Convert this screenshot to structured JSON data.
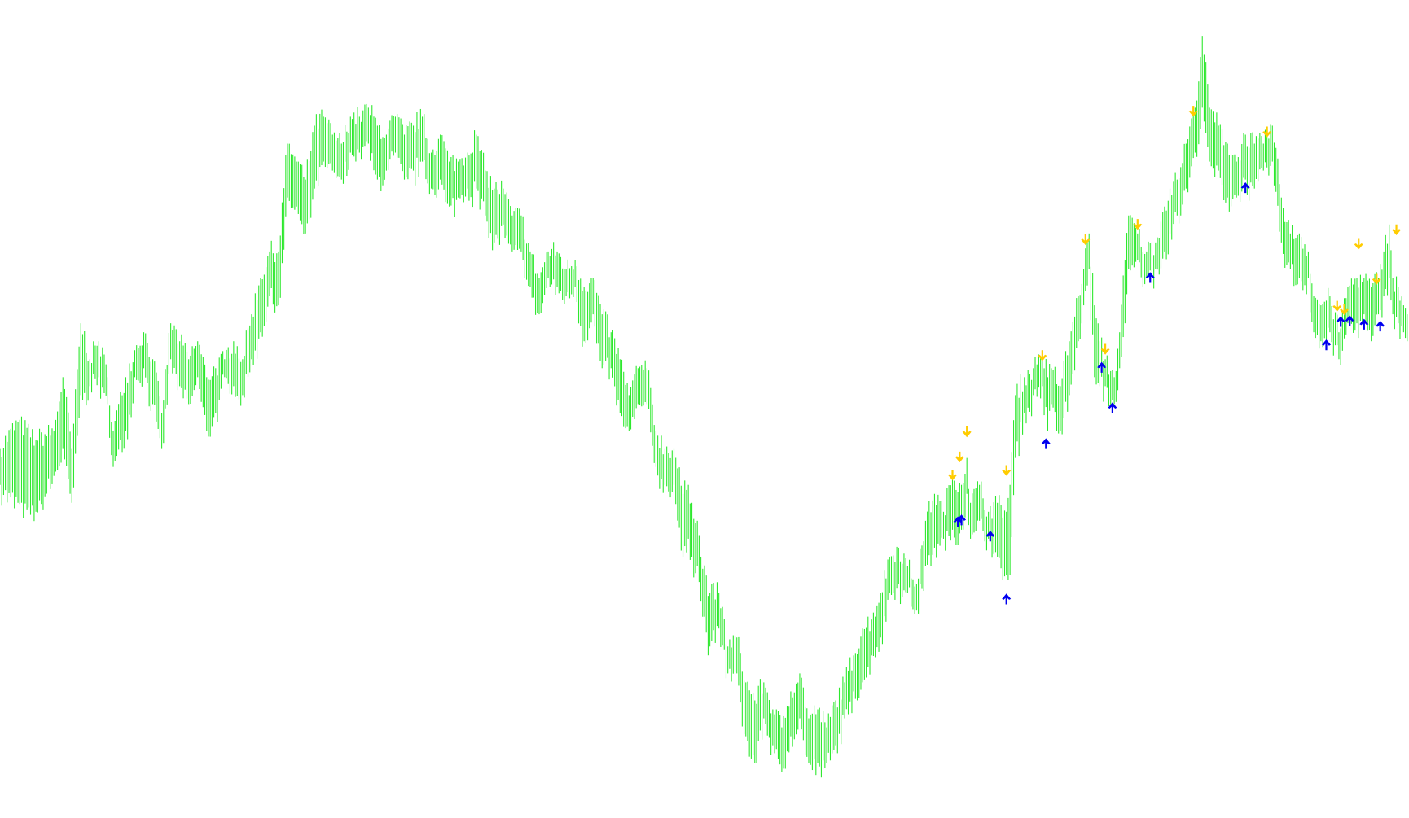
{
  "chart_data": {
    "type": "ohlc-bar",
    "title": "",
    "xlabel": "",
    "ylabel": "",
    "grid": false,
    "legend": "none",
    "background_color": "#ffffff",
    "bar_color": "#2ee82e",
    "up_arrow_color": "#0000ee",
    "down_arrow_color": "#ffcc00",
    "xlim": [
      0,
      785
    ],
    "ylim": [
      89,
      1000
    ],
    "bars_high_low": [
      [
        0,
        500,
        460
      ],
      [
        10,
        530,
        440
      ],
      [
        20,
        510,
        430
      ],
      [
        30,
        520,
        470
      ],
      [
        35,
        580,
        500
      ],
      [
        40,
        500,
        440
      ],
      [
        45,
        640,
        560
      ],
      [
        50,
        600,
        570
      ],
      [
        55,
        620,
        580
      ],
      [
        60,
        580,
        550
      ],
      [
        63,
        520,
        480
      ],
      [
        70,
        580,
        520
      ],
      [
        75,
        610,
        580
      ],
      [
        80,
        630,
        590
      ],
      [
        85,
        600,
        550
      ],
      [
        90,
        540,
        500
      ],
      [
        95,
        640,
        600
      ],
      [
        100,
        620,
        570
      ],
      [
        105,
        600,
        550
      ],
      [
        110,
        620,
        580
      ],
      [
        115,
        580,
        520
      ],
      [
        120,
        590,
        540
      ],
      [
        125,
        600,
        580
      ],
      [
        130,
        620,
        570
      ],
      [
        135,
        600,
        560
      ],
      [
        140,
        650,
        600
      ],
      [
        145,
        690,
        630
      ],
      [
        150,
        720,
        670
      ],
      [
        155,
        720,
        660
      ],
      [
        160,
        840,
        780
      ],
      [
        165,
        820,
        770
      ],
      [
        170,
        800,
        740
      ],
      [
        175,
        860,
        790
      ],
      [
        180,
        870,
        820
      ],
      [
        185,
        850,
        810
      ],
      [
        190,
        840,
        800
      ],
      [
        195,
        870,
        830
      ],
      [
        200,
        870,
        830
      ],
      [
        205,
        880,
        840
      ],
      [
        210,
        860,
        800
      ],
      [
        215,
        850,
        810
      ],
      [
        220,
        870,
        830
      ],
      [
        225,
        850,
        800
      ],
      [
        230,
        860,
        810
      ],
      [
        235,
        870,
        820
      ],
      [
        240,
        830,
        790
      ],
      [
        245,
        850,
        800
      ],
      [
        250,
        820,
        770
      ],
      [
        255,
        820,
        780
      ],
      [
        260,
        830,
        790
      ],
      [
        265,
        850,
        790
      ],
      [
        270,
        810,
        760
      ],
      [
        275,
        790,
        730
      ],
      [
        280,
        790,
        750
      ],
      [
        285,
        760,
        720
      ],
      [
        290,
        760,
        720
      ],
      [
        295,
        720,
        680
      ],
      [
        300,
        690,
        650
      ],
      [
        305,
        720,
        690
      ],
      [
        310,
        720,
        680
      ],
      [
        315,
        700,
        670
      ],
      [
        320,
        710,
        680
      ],
      [
        325,
        680,
        620
      ],
      [
        330,
        690,
        650
      ],
      [
        335,
        650,
        590
      ],
      [
        340,
        630,
        590
      ],
      [
        345,
        600,
        540
      ],
      [
        350,
        560,
        520
      ],
      [
        355,
        590,
        550
      ],
      [
        360,
        590,
        550
      ],
      [
        365,
        520,
        480
      ],
      [
        370,
        500,
        460
      ],
      [
        375,
        500,
        460
      ],
      [
        380,
        450,
        380
      ],
      [
        383,
        460,
        400
      ],
      [
        385,
        440,
        380
      ],
      [
        388,
        420,
        370
      ],
      [
        390,
        380,
        330
      ],
      [
        395,
        340,
        280
      ],
      [
        400,
        340,
        300
      ],
      [
        405,
        280,
        250
      ],
      [
        410,
        290,
        250
      ],
      [
        415,
        240,
        180
      ],
      [
        420,
        220,
        150
      ],
      [
        425,
        240,
        200
      ],
      [
        430,
        210,
        170
      ],
      [
        435,
        190,
        140
      ],
      [
        440,
        230,
        180
      ],
      [
        445,
        250,
        200
      ],
      [
        450,
        200,
        150
      ],
      [
        455,
        210,
        150
      ],
      [
        460,
        190,
        150
      ],
      [
        465,
        220,
        170
      ],
      [
        470,
        240,
        200
      ],
      [
        475,
        270,
        230
      ],
      [
        480,
        300,
        240
      ],
      [
        485,
        310,
        270
      ],
      [
        490,
        340,
        290
      ],
      [
        495,
        380,
        340
      ],
      [
        500,
        390,
        350
      ],
      [
        505,
        370,
        340
      ],
      [
        510,
        350,
        320
      ],
      [
        515,
        420,
        370
      ],
      [
        520,
        450,
        390
      ],
      [
        525,
        430,
        400
      ],
      [
        530,
        470,
        410
      ],
      [
        535,
        460,
        410
      ],
      [
        538,
        490,
        450
      ],
      [
        540,
        440,
        400
      ],
      [
        545,
        460,
        420
      ],
      [
        550,
        430,
        400
      ],
      [
        555,
        440,
        380
      ],
      [
        560,
        430,
        360
      ],
      [
        562,
        460,
        360
      ],
      [
        565,
        560,
        490
      ],
      [
        570,
        580,
        540
      ],
      [
        575,
        590,
        560
      ],
      [
        580,
        610,
        570
      ],
      [
        583,
        580,
        520
      ],
      [
        585,
        590,
        550
      ],
      [
        590,
        570,
        520
      ],
      [
        595,
        620,
        560
      ],
      [
        600,
        670,
        620
      ],
      [
        603,
        700,
        660
      ],
      [
        606,
        740,
        700
      ],
      [
        609,
        660,
        580
      ],
      [
        612,
        620,
        570
      ],
      [
        615,
        600,
        570
      ],
      [
        620,
        580,
        550
      ],
      [
        623,
        630,
        590
      ],
      [
        626,
        710,
        640
      ],
      [
        628,
        760,
        700
      ],
      [
        633,
        740,
        710
      ],
      [
        638,
        720,
        690
      ],
      [
        643,
        730,
        700
      ],
      [
        648,
        770,
        720
      ],
      [
        651,
        790,
        740
      ],
      [
        655,
        800,
        760
      ],
      [
        660,
        840,
        790
      ],
      [
        665,
        880,
        830
      ],
      [
        669,
        960,
        880
      ],
      [
        673,
        880,
        820
      ],
      [
        678,
        860,
        810
      ],
      [
        683,
        840,
        780
      ],
      [
        688,
        820,
        780
      ],
      [
        693,
        850,
        800
      ],
      [
        698,
        840,
        790
      ],
      [
        703,
        840,
        810
      ],
      [
        708,
        860,
        820
      ],
      [
        713,
        780,
        730
      ],
      [
        718,
        740,
        700
      ],
      [
        723,
        740,
        690
      ],
      [
        728,
        720,
        690
      ],
      [
        731,
        670,
        630
      ],
      [
        735,
        660,
        620
      ],
      [
        740,
        670,
        630
      ],
      [
        745,
        630,
        600
      ],
      [
        750,
        680,
        640
      ],
      [
        755,
        690,
        640
      ],
      [
        759,
        690,
        650
      ],
      [
        763,
        680,
        620
      ],
      [
        767,
        690,
        650
      ],
      [
        770,
        720,
        670
      ],
      [
        773,
        750,
        690
      ],
      [
        775,
        690,
        650
      ],
      [
        778,
        680,
        640
      ],
      [
        781,
        660,
        630
      ],
      [
        783,
        650,
        620
      ]
    ],
    "down_arrows": [
      {
        "t": 530,
        "price": 470
      },
      {
        "t": 534,
        "price": 490
      },
      {
        "t": 538,
        "price": 518
      },
      {
        "t": 560,
        "price": 475
      },
      {
        "t": 580,
        "price": 603
      },
      {
        "t": 604,
        "price": 732
      },
      {
        "t": 615,
        "price": 610
      },
      {
        "t": 633,
        "price": 749
      },
      {
        "t": 664,
        "price": 875
      },
      {
        "t": 705,
        "price": 852
      },
      {
        "t": 744,
        "price": 658
      },
      {
        "t": 748,
        "price": 654
      },
      {
        "t": 756,
        "price": 727
      },
      {
        "t": 766,
        "price": 688
      },
      {
        "t": 777,
        "price": 743
      }
    ],
    "up_arrows": [
      {
        "t": 533,
        "price": 420
      },
      {
        "t": 535,
        "price": 422
      },
      {
        "t": 551,
        "price": 404
      },
      {
        "t": 560,
        "price": 334
      },
      {
        "t": 582,
        "price": 507
      },
      {
        "t": 613,
        "price": 592
      },
      {
        "t": 619,
        "price": 547
      },
      {
        "t": 640,
        "price": 692
      },
      {
        "t": 693,
        "price": 792
      },
      {
        "t": 738,
        "price": 617
      },
      {
        "t": 746,
        "price": 643
      },
      {
        "t": 751,
        "price": 644
      },
      {
        "t": 759,
        "price": 640
      },
      {
        "t": 768,
        "price": 638
      }
    ]
  }
}
